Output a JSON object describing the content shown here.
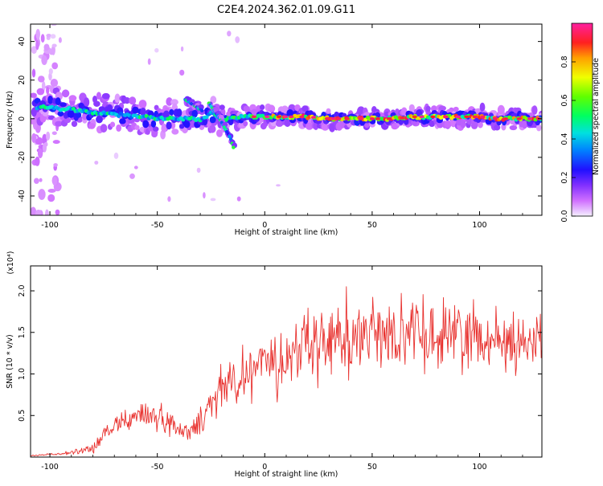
{
  "title": "C2E4.2024.362.01.09.G11",
  "colors": {
    "snr_line": "#e8312e",
    "ridge": "#e8312e"
  },
  "spectrogram": {
    "xlabel": "Height of straight line (km)",
    "ylabel": "Frequency (Hz)",
    "xlim": [
      -109,
      129
    ],
    "ylim": [
      -50,
      49
    ],
    "xticks": [
      -100,
      -50,
      0,
      50,
      100
    ],
    "yticks": [
      40,
      20,
      0,
      -20,
      -40
    ],
    "colorbar": {
      "label": "Normalized spectral amplitude",
      "range": [
        0,
        1
      ],
      "ticks": [
        "0.0",
        "0.2",
        "0.4",
        "0.6",
        "0.8"
      ],
      "tick_values": [
        0,
        0.2,
        0.4,
        0.6,
        0.8
      ]
    }
  },
  "chart_data": [
    {
      "type": "heatmap",
      "title": "C2E4.2024.362.01.09.G11",
      "xlabel": "Height of straight line (km)",
      "ylabel": "Frequency (Hz)",
      "xlim": [
        -109,
        129
      ],
      "ylim": [
        -50,
        49
      ],
      "ridge": {
        "x": [
          -106,
          -100,
          -95,
          -90,
          -85,
          -80,
          -75,
          -70,
          -65,
          -60,
          -55,
          -50,
          -45,
          -40,
          -35,
          -30,
          -25,
          -20,
          -15,
          -10,
          -5,
          0,
          10,
          20,
          30,
          40,
          50,
          60,
          70,
          80,
          90,
          100,
          110,
          120,
          129
        ],
        "y": [
          6,
          6,
          5,
          5,
          4,
          3,
          3,
          2,
          2,
          1,
          1,
          0,
          0,
          0,
          0,
          -1,
          3,
          0,
          0,
          1,
          1,
          1,
          1,
          1,
          0,
          0,
          0,
          0,
          1,
          1,
          1,
          1,
          0,
          0,
          0
        ]
      },
      "branches": [
        {
          "x": [
            -26,
            -22,
            -19,
            -16,
            -14
          ],
          "y": [
            8,
            2,
            -4,
            -10,
            -17
          ]
        },
        {
          "x": [
            -37,
            -33,
            -29
          ],
          "y": [
            10,
            7,
            4
          ]
        }
      ],
      "colorbar": {
        "label": "Normalized spectral amplitude",
        "range": [
          0,
          1
        ]
      }
    },
    {
      "type": "line",
      "xlabel": "Height of straight line (km)",
      "ylabel": "SNR (10 * v/v)",
      "y_multiplier": "(x10⁴)",
      "xlim": [
        -109,
        129
      ],
      "ylim": [
        0,
        2.3
      ],
      "y_unit": "x10^4",
      "xticks": [
        -100,
        -50,
        0,
        50,
        100
      ],
      "yticks": [
        0.5,
        1.0,
        1.5,
        2.0
      ],
      "series": [
        {
          "x": [
            -109,
            -100,
            -90,
            -80,
            -75,
            -70,
            -65,
            -60,
            -55,
            -50,
            -45,
            -40,
            -35,
            -30,
            -25,
            -20,
            -17,
            -15,
            -10,
            -7,
            -5,
            0,
            5,
            6,
            7,
            10,
            15,
            20,
            30,
            40,
            50,
            60,
            70,
            80,
            90,
            100,
            110,
            120,
            129
          ],
          "y": [
            0.02,
            0.03,
            0.05,
            0.1,
            0.25,
            0.38,
            0.45,
            0.48,
            0.52,
            0.48,
            0.42,
            0.35,
            0.28,
            0.45,
            0.7,
            0.85,
            0.95,
            0.9,
            0.92,
            0.95,
            1.05,
            1.2,
            1.25,
            0.7,
            1.15,
            1.2,
            1.25,
            1.3,
            1.4,
            1.45,
            1.45,
            1.5,
            1.5,
            1.45,
            1.5,
            1.45,
            1.4,
            1.35,
            1.4
          ],
          "spread": [
            0.01,
            0.02,
            0.03,
            0.1,
            0.15,
            0.2,
            0.2,
            0.22,
            0.25,
            0.22,
            0.2,
            0.15,
            0.12,
            0.25,
            0.4,
            0.45,
            0.5,
            0.45,
            0.4,
            0.4,
            0.35,
            0.35,
            0.4,
            0.2,
            0.4,
            0.45,
            0.5,
            0.55,
            0.6,
            0.6,
            0.55,
            0.55,
            0.55,
            0.55,
            0.55,
            0.5,
            0.5,
            0.45,
            0.5
          ]
        }
      ]
    }
  ]
}
